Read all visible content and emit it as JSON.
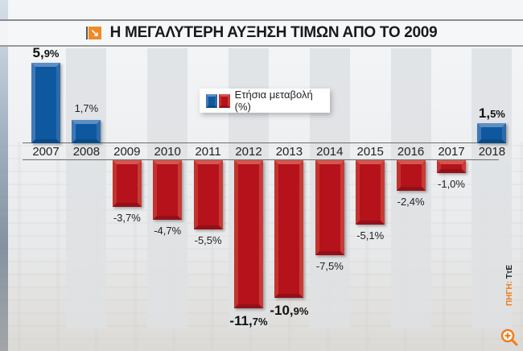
{
  "title": "Η ΜΕΓΑΛΥΤΕΡΗ ΑΥΞΗΣΗ ΤΙΜΩΝ ΑΠΟ ΤΟ 2009",
  "title_icon": "arrow-down-right-icon",
  "legend": {
    "label": "Ετήσια μεταβολή (%)"
  },
  "source": {
    "label": "ΠΗΓΗ:",
    "value": "ΤτΕ"
  },
  "colors": {
    "positive": "#0e58a0",
    "negative": "#b5121b",
    "accent": "#f08a24"
  },
  "years": [
    "2007",
    "2008",
    "2009",
    "2010",
    "2011",
    "2012",
    "2013",
    "2014",
    "2015",
    "2016",
    "2017",
    "2018"
  ],
  "labels": [
    "5,9%",
    "1,7%",
    "-3,7%",
    "-4,7%",
    "-5,5%",
    "-11,7%",
    "-10,9%",
    "-7,5%",
    "-5,1%",
    "-2,4%",
    "-1,0%",
    "1,5%"
  ],
  "chart_data": {
    "type": "bar",
    "title": "Η ΜΕΓΑΛΥΤΕΡΗ ΑΥΞΗΣΗ ΤΙΜΩΝ ΑΠΟ ΤΟ 2009",
    "categories": [
      "2007",
      "2008",
      "2009",
      "2010",
      "2011",
      "2012",
      "2013",
      "2014",
      "2015",
      "2016",
      "2017",
      "2018"
    ],
    "series": [
      {
        "name": "Ετήσια μεταβολή (%)",
        "values": [
          5.9,
          1.7,
          -3.7,
          -4.7,
          -5.5,
          -11.7,
          -10.9,
          -7.5,
          -5.1,
          -2.4,
          -1.0,
          1.5
        ]
      }
    ],
    "xlabel": "",
    "ylabel": "",
    "ylim": [
      -12,
      6
    ],
    "grid": false,
    "legend_position": "top-center",
    "annotations": [
      "ΠΗΓΗ: ΤτΕ"
    ]
  }
}
